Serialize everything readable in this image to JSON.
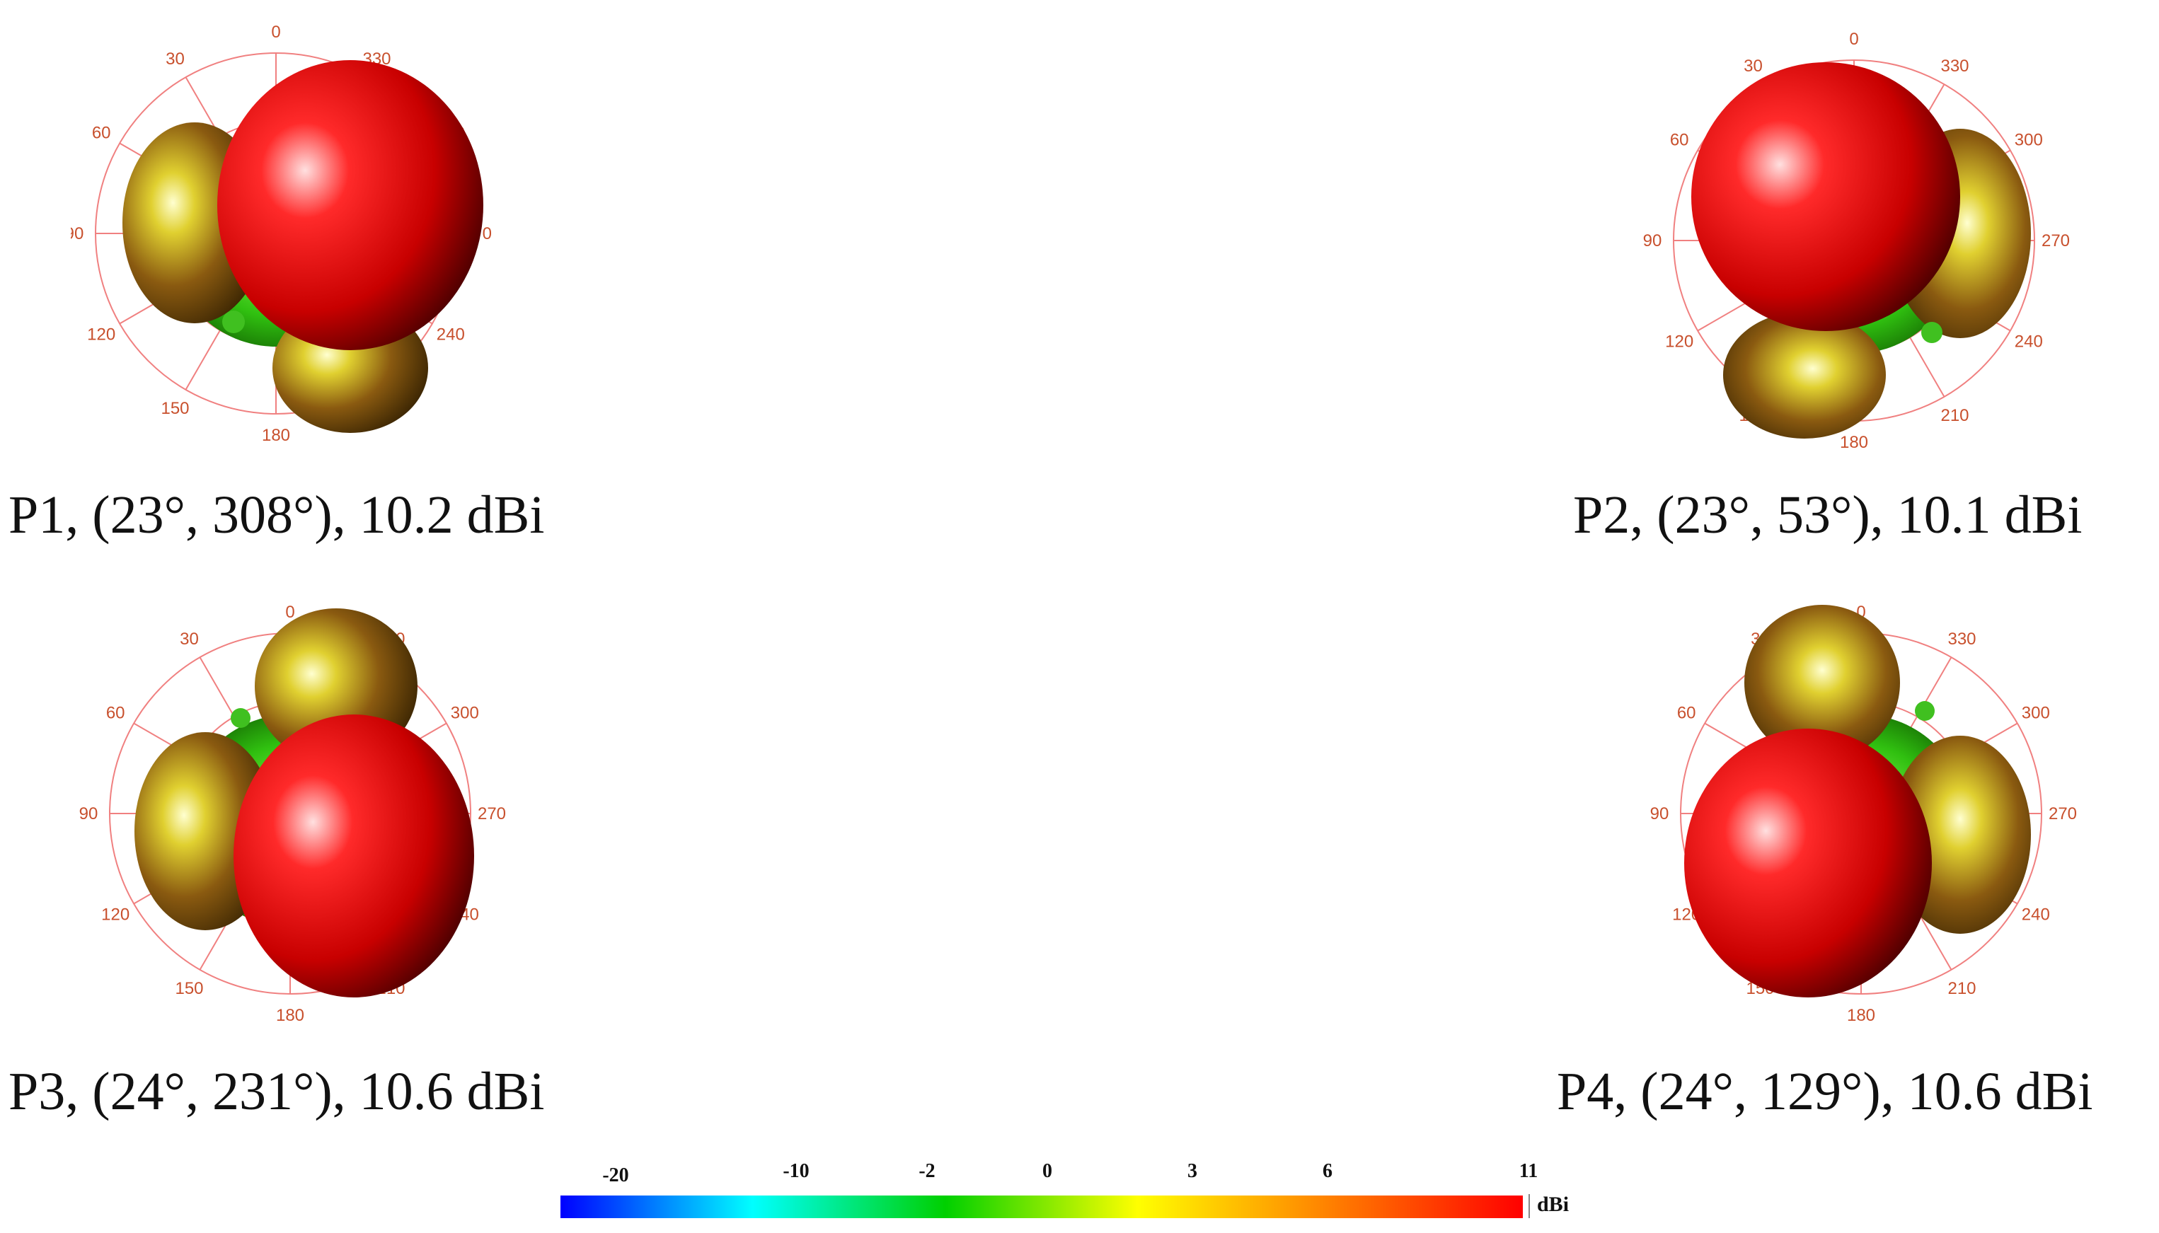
{
  "angle_ticks": [
    "0",
    "30",
    "60",
    "90",
    "120",
    "150",
    "180",
    "210",
    "240",
    "270",
    "300",
    "330"
  ],
  "panels": [
    {
      "id": "p1",
      "caption": "P1, (23°, 308°), 10.2 dBi"
    },
    {
      "id": "p2",
      "caption": "P2, (23°, 53°), 10.1 dBi"
    },
    {
      "id": "p3",
      "caption": "P3, (24°, 231°), 10.6 dBi"
    },
    {
      "id": "p4",
      "caption": "P4, (24°, 129°), 10.6 dBi"
    }
  ],
  "colorbar": {
    "unit": "dBi",
    "ticks": [
      "-20",
      "-10",
      "-2",
      "0",
      "3",
      "6",
      "11"
    ],
    "colors": [
      "#0000ff",
      "#00ffff",
      "#00d000",
      "#ffff00",
      "#ff8000",
      "#ff0000"
    ]
  }
}
